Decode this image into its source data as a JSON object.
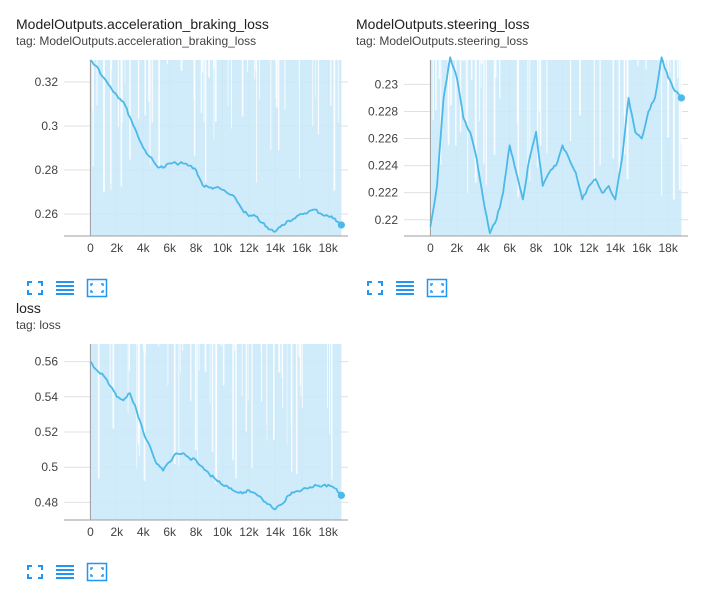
{
  "cards": [
    {
      "title": "ModelOutputs.acceleration_braking_loss",
      "tag": "tag: ModelOutputs.acceleration_braking_loss"
    },
    {
      "title": "ModelOutputs.steering_loss",
      "tag": "tag: ModelOutputs.steering_loss"
    },
    {
      "title": "loss",
      "tag": "tag: loss"
    }
  ],
  "toolbar_icons": [
    "fullscreen-icon",
    "legend-toggle-icon",
    "fit-domain-icon"
  ],
  "colors": {
    "line": "#4cb9e8",
    "band": "#cbe9f9",
    "grid": "#e0e0e0",
    "axis": "#9e9e9e"
  },
  "chart_data": [
    {
      "type": "line",
      "title": "ModelOutputs.acceleration_braking_loss",
      "xlim": [
        -2000,
        19500
      ],
      "ylim": [
        0.25,
        0.33
      ],
      "xticks": [
        0,
        2000,
        4000,
        6000,
        8000,
        10000,
        12000,
        14000,
        16000,
        18000
      ],
      "xtick_labels": [
        "0",
        "2k",
        "4k",
        "6k",
        "8k",
        "10k",
        "12k",
        "14k",
        "16k",
        "18k"
      ],
      "yticks": [
        0.26,
        0.28,
        0.3,
        0.32
      ],
      "ytick_labels": [
        "0.26",
        "0.28",
        "0.3",
        "0.32"
      ],
      "grid": true,
      "series": [
        {
          "x": [
            0,
            500,
            1000,
            1500,
            2000,
            2500,
            3000,
            3500,
            4000,
            4500,
            5000,
            5500,
            6000,
            6500,
            7000,
            7500,
            8000,
            8500,
            9000,
            9500,
            10000,
            10500,
            11000,
            11500,
            12000,
            12500,
            13000,
            13500,
            14000,
            14500,
            15000,
            15500,
            16000,
            16500,
            17000,
            17500,
            18000,
            18500,
            19000
          ],
          "y": [
            0.33,
            0.327,
            0.322,
            0.318,
            0.314,
            0.311,
            0.304,
            0.297,
            0.29,
            0.286,
            0.282,
            0.281,
            0.283,
            0.283,
            0.283,
            0.282,
            0.28,
            0.273,
            0.272,
            0.272,
            0.271,
            0.269,
            0.267,
            0.262,
            0.259,
            0.259,
            0.256,
            0.253,
            0.252,
            0.255,
            0.257,
            0.258,
            0.26,
            0.261,
            0.262,
            0.26,
            0.259,
            0.258,
            0.255
          ]
        }
      ]
    },
    {
      "type": "line",
      "title": "ModelOutputs.steering_loss",
      "xlim": [
        -2000,
        19500
      ],
      "ylim": [
        0.2188,
        0.2318
      ],
      "xticks": [
        0,
        2000,
        4000,
        6000,
        8000,
        10000,
        12000,
        14000,
        16000,
        18000
      ],
      "xtick_labels": [
        "0",
        "2k",
        "4k",
        "6k",
        "8k",
        "10k",
        "12k",
        "14k",
        "16k",
        "18k"
      ],
      "yticks": [
        0.22,
        0.222,
        0.224,
        0.226,
        0.228,
        0.23
      ],
      "ytick_labels": [
        "0.22",
        "0.222",
        "0.224",
        "0.226",
        "0.228",
        "0.23"
      ],
      "grid": true,
      "series": [
        {
          "x": [
            0,
            500,
            1000,
            1500,
            2000,
            2500,
            3000,
            3500,
            4000,
            4500,
            5000,
            5500,
            6000,
            6500,
            7000,
            7500,
            8000,
            8500,
            9000,
            9500,
            10000,
            10500,
            11000,
            11500,
            12000,
            12500,
            13000,
            13500,
            14000,
            14500,
            15000,
            15500,
            16000,
            16500,
            17000,
            17500,
            18000,
            18500,
            19000
          ],
          "y": [
            0.2195,
            0.2225,
            0.229,
            0.232,
            0.2305,
            0.2275,
            0.2265,
            0.2245,
            0.2215,
            0.219,
            0.22,
            0.222,
            0.2255,
            0.2235,
            0.2215,
            0.2245,
            0.2265,
            0.2225,
            0.2235,
            0.224,
            0.2255,
            0.2245,
            0.2235,
            0.2215,
            0.2225,
            0.223,
            0.222,
            0.2225,
            0.2215,
            0.2245,
            0.229,
            0.2265,
            0.226,
            0.228,
            0.229,
            0.232,
            0.2305,
            0.2295,
            0.229
          ]
        }
      ]
    },
    {
      "type": "line",
      "title": "loss",
      "xlim": [
        -2000,
        19500
      ],
      "ylim": [
        0.47,
        0.57
      ],
      "xticks": [
        0,
        2000,
        4000,
        6000,
        8000,
        10000,
        12000,
        14000,
        16000,
        18000
      ],
      "xtick_labels": [
        "0",
        "2k",
        "4k",
        "6k",
        "8k",
        "10k",
        "12k",
        "14k",
        "16k",
        "18k"
      ],
      "yticks": [
        0.48,
        0.5,
        0.52,
        0.54,
        0.56
      ],
      "ytick_labels": [
        "0.48",
        "0.5",
        "0.52",
        "0.54",
        "0.56"
      ],
      "grid": true,
      "series": [
        {
          "x": [
            0,
            500,
            1000,
            1500,
            2000,
            2500,
            3000,
            3500,
            4000,
            4500,
            5000,
            5500,
            6000,
            6500,
            7000,
            7500,
            8000,
            8500,
            9000,
            9500,
            10000,
            10500,
            11000,
            11500,
            12000,
            12500,
            13000,
            13500,
            14000,
            14500,
            15000,
            15500,
            16000,
            16500,
            17000,
            17500,
            18000,
            18500,
            19000
          ],
          "y": [
            0.56,
            0.555,
            0.552,
            0.546,
            0.54,
            0.538,
            0.542,
            0.532,
            0.52,
            0.512,
            0.502,
            0.498,
            0.503,
            0.508,
            0.508,
            0.505,
            0.504,
            0.5,
            0.496,
            0.493,
            0.49,
            0.488,
            0.486,
            0.485,
            0.487,
            0.485,
            0.482,
            0.479,
            0.476,
            0.479,
            0.484,
            0.486,
            0.487,
            0.488,
            0.49,
            0.489,
            0.49,
            0.488,
            0.484
          ]
        }
      ]
    }
  ]
}
